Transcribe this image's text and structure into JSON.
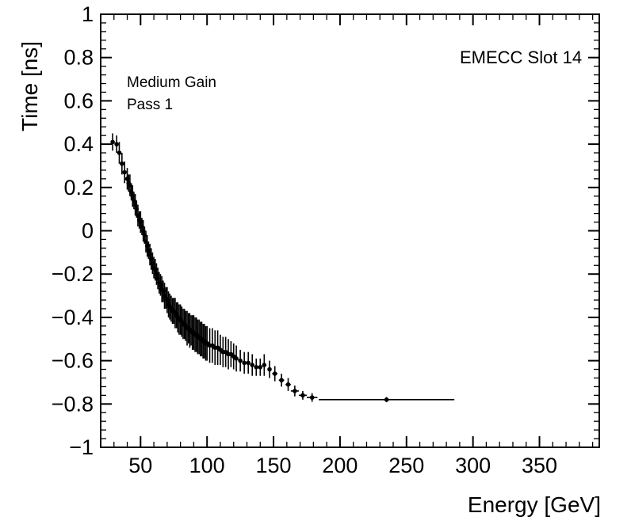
{
  "page": {
    "background_color": "#ffffff",
    "foreground_color": "#000000"
  },
  "chart_data": {
    "type": "scatter",
    "title": "",
    "xlabel": "Energy [GeV]",
    "ylabel": "Time [ns]",
    "xlim": [
      20,
      395
    ],
    "ylim": [
      -1,
      1
    ],
    "grid": false,
    "legend": "none",
    "marker": "filled-circle",
    "marker_color": "#000000",
    "x_ticks": [
      50,
      100,
      150,
      200,
      250,
      300,
      350
    ],
    "x_tick_labels": [
      "50",
      "100",
      "150",
      "200",
      "250",
      "300",
      "350"
    ],
    "x_minor_step": 10,
    "y_ticks": [
      1,
      0.8,
      0.6,
      0.4,
      0.2,
      0,
      -0.2,
      -0.4,
      -0.6,
      -0.8,
      -1
    ],
    "y_tick_labels": [
      "1",
      "0.8",
      "0.6",
      "0.4",
      "0.2",
      "0",
      "−0.2",
      "−0.4",
      "−0.6",
      "−0.8",
      "−1"
    ],
    "y_minor_step": 0.04,
    "annotations": [
      {
        "name": "detector-slot-label",
        "text": "EMECC Slot 14"
      },
      {
        "name": "gain-label",
        "text": "Medium Gain"
      },
      {
        "name": "pass-label",
        "text": "Pass 1"
      }
    ],
    "points_format": [
      "energy_gev",
      "time_ns",
      "time_err_ns",
      "energy_err_gev"
    ],
    "points": [
      [
        29,
        0.41,
        0.04,
        1
      ],
      [
        32,
        0.4,
        0.04,
        1
      ],
      [
        34,
        0.36,
        0.05,
        0
      ],
      [
        36,
        0.31,
        0.05,
        0
      ],
      [
        38,
        0.27,
        0.05,
        0
      ],
      [
        40,
        0.24,
        0.05,
        0
      ],
      [
        41,
        0.22,
        0.04,
        0
      ],
      [
        42,
        0.21,
        0.05,
        0
      ],
      [
        43,
        0.18,
        0.04,
        0
      ],
      [
        44,
        0.16,
        0.05,
        0
      ],
      [
        45,
        0.14,
        0.04,
        0
      ],
      [
        46,
        0.12,
        0.05,
        0
      ],
      [
        47,
        0.1,
        0.04,
        0
      ],
      [
        48,
        0.07,
        0.05,
        0
      ],
      [
        49,
        0.05,
        0.04,
        0
      ],
      [
        50,
        0.04,
        0.05,
        0
      ],
      [
        51,
        0.02,
        0.04,
        0
      ],
      [
        52,
        0.0,
        0.05,
        0
      ],
      [
        53,
        -0.02,
        0.04,
        0
      ],
      [
        54,
        -0.05,
        0.05,
        0
      ],
      [
        55,
        -0.07,
        0.05,
        0
      ],
      [
        56,
        -0.09,
        0.04,
        0
      ],
      [
        57,
        -0.11,
        0.05,
        0
      ],
      [
        58,
        -0.13,
        0.05,
        0
      ],
      [
        59,
        -0.15,
        0.05,
        0
      ],
      [
        60,
        -0.17,
        0.05,
        0
      ],
      [
        61,
        -0.18,
        0.05,
        0
      ],
      [
        62,
        -0.2,
        0.05,
        0
      ],
      [
        63,
        -0.22,
        0.05,
        0
      ],
      [
        64,
        -0.24,
        0.05,
        0
      ],
      [
        65,
        -0.25,
        0.05,
        0
      ],
      [
        66,
        -0.27,
        0.06,
        0
      ],
      [
        67,
        -0.28,
        0.05,
        0
      ],
      [
        68,
        -0.3,
        0.06,
        0
      ],
      [
        69,
        -0.31,
        0.05,
        0
      ],
      [
        70,
        -0.32,
        0.06,
        0
      ],
      [
        71,
        -0.34,
        0.06,
        0
      ],
      [
        72,
        -0.35,
        0.06,
        0
      ],
      [
        73,
        -0.36,
        0.06,
        0
      ],
      [
        74,
        -0.37,
        0.06,
        0
      ],
      [
        75,
        -0.37,
        0.06,
        0
      ],
      [
        76,
        -0.38,
        0.07,
        0
      ],
      [
        77,
        -0.39,
        0.06,
        0
      ],
      [
        78,
        -0.4,
        0.07,
        0
      ],
      [
        79,
        -0.41,
        0.07,
        0
      ],
      [
        80,
        -0.41,
        0.07,
        0
      ],
      [
        81,
        -0.42,
        0.07,
        0
      ],
      [
        82,
        -0.43,
        0.07,
        0
      ],
      [
        83,
        -0.43,
        0.07,
        0
      ],
      [
        84,
        -0.44,
        0.07,
        0
      ],
      [
        85,
        -0.45,
        0.08,
        0
      ],
      [
        86,
        -0.45,
        0.07,
        0
      ],
      [
        87,
        -0.46,
        0.08,
        0
      ],
      [
        88,
        -0.46,
        0.07,
        0
      ],
      [
        89,
        -0.47,
        0.08,
        0
      ],
      [
        90,
        -0.47,
        0.08,
        0
      ],
      [
        91,
        -0.48,
        0.08,
        0
      ],
      [
        92,
        -0.48,
        0.08,
        0
      ],
      [
        93,
        -0.49,
        0.08,
        0
      ],
      [
        94,
        -0.49,
        0.08,
        0
      ],
      [
        95,
        -0.5,
        0.08,
        0
      ],
      [
        96,
        -0.5,
        0.08,
        0
      ],
      [
        97,
        -0.51,
        0.08,
        0
      ],
      [
        98,
        -0.51,
        0.08,
        0
      ],
      [
        99,
        -0.52,
        0.08,
        0
      ],
      [
        100,
        -0.52,
        0.08,
        0
      ],
      [
        102,
        -0.53,
        0.08,
        0
      ],
      [
        104,
        -0.53,
        0.08,
        0
      ],
      [
        106,
        -0.54,
        0.08,
        0
      ],
      [
        108,
        -0.54,
        0.08,
        0
      ],
      [
        110,
        -0.55,
        0.07,
        0
      ],
      [
        112,
        -0.56,
        0.07,
        0
      ],
      [
        114,
        -0.56,
        0.07,
        0
      ],
      [
        116,
        -0.57,
        0.07,
        0
      ],
      [
        118,
        -0.57,
        0.06,
        0
      ],
      [
        120,
        -0.58,
        0.06,
        0
      ],
      [
        122,
        -0.59,
        0.06,
        0
      ],
      [
        125,
        -0.6,
        0.05,
        0
      ],
      [
        128,
        -0.61,
        0.05,
        0
      ],
      [
        131,
        -0.61,
        0.05,
        0
      ],
      [
        134,
        -0.62,
        0.05,
        0
      ],
      [
        137,
        -0.63,
        0.04,
        0
      ],
      [
        140,
        -0.63,
        0.04,
        0
      ],
      [
        143,
        -0.62,
        0.05,
        1
      ],
      [
        147,
        -0.64,
        0.04,
        1
      ],
      [
        151,
        -0.66,
        0.035,
        2
      ],
      [
        156,
        -0.69,
        0.03,
        2
      ],
      [
        161,
        -0.71,
        0.03,
        2
      ],
      [
        166,
        -0.74,
        0.025,
        3
      ],
      [
        172,
        -0.76,
        0.02,
        3
      ],
      [
        179,
        -0.77,
        0.02,
        4
      ],
      [
        235,
        -0.78,
        0.012,
        51
      ]
    ]
  }
}
